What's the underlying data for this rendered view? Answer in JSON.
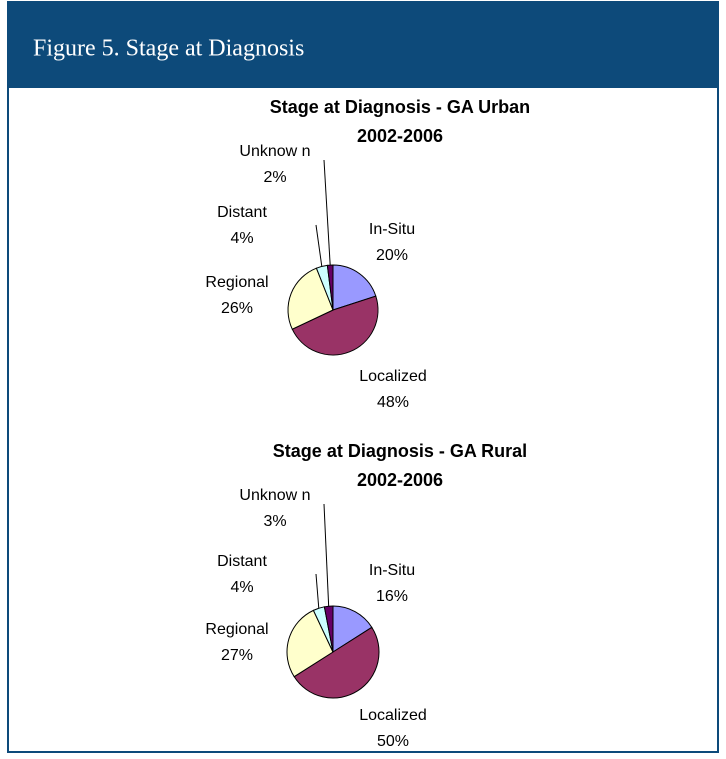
{
  "header": {
    "title": "Figure 5. Stage at Diagnosis"
  },
  "chart_data": [
    {
      "type": "pie",
      "title": "Stage at Diagnosis - GA Urban",
      "subtitle": "2002-2006",
      "categories": [
        "In-Situ",
        "Localized",
        "Regional",
        "Distant",
        "Unknow n"
      ],
      "values": [
        20,
        48,
        26,
        4,
        2
      ],
      "value_labels": [
        "20%",
        "48%",
        "26%",
        "4%",
        "2%"
      ],
      "colors": [
        "#9999ff",
        "#993366",
        "#ffffcc",
        "#ccffff",
        "#660066"
      ]
    },
    {
      "type": "pie",
      "title": "Stage at Diagnosis - GA Rural",
      "subtitle": "2002-2006",
      "categories": [
        "In-Situ",
        "Localized",
        "Regional",
        "Distant",
        "Unknow n"
      ],
      "values": [
        16,
        50,
        27,
        4,
        3
      ],
      "value_labels": [
        "16%",
        "50%",
        "27%",
        "4%",
        "3%"
      ],
      "colors": [
        "#9999ff",
        "#993366",
        "#ffffcc",
        "#ccffff",
        "#660066"
      ]
    }
  ]
}
